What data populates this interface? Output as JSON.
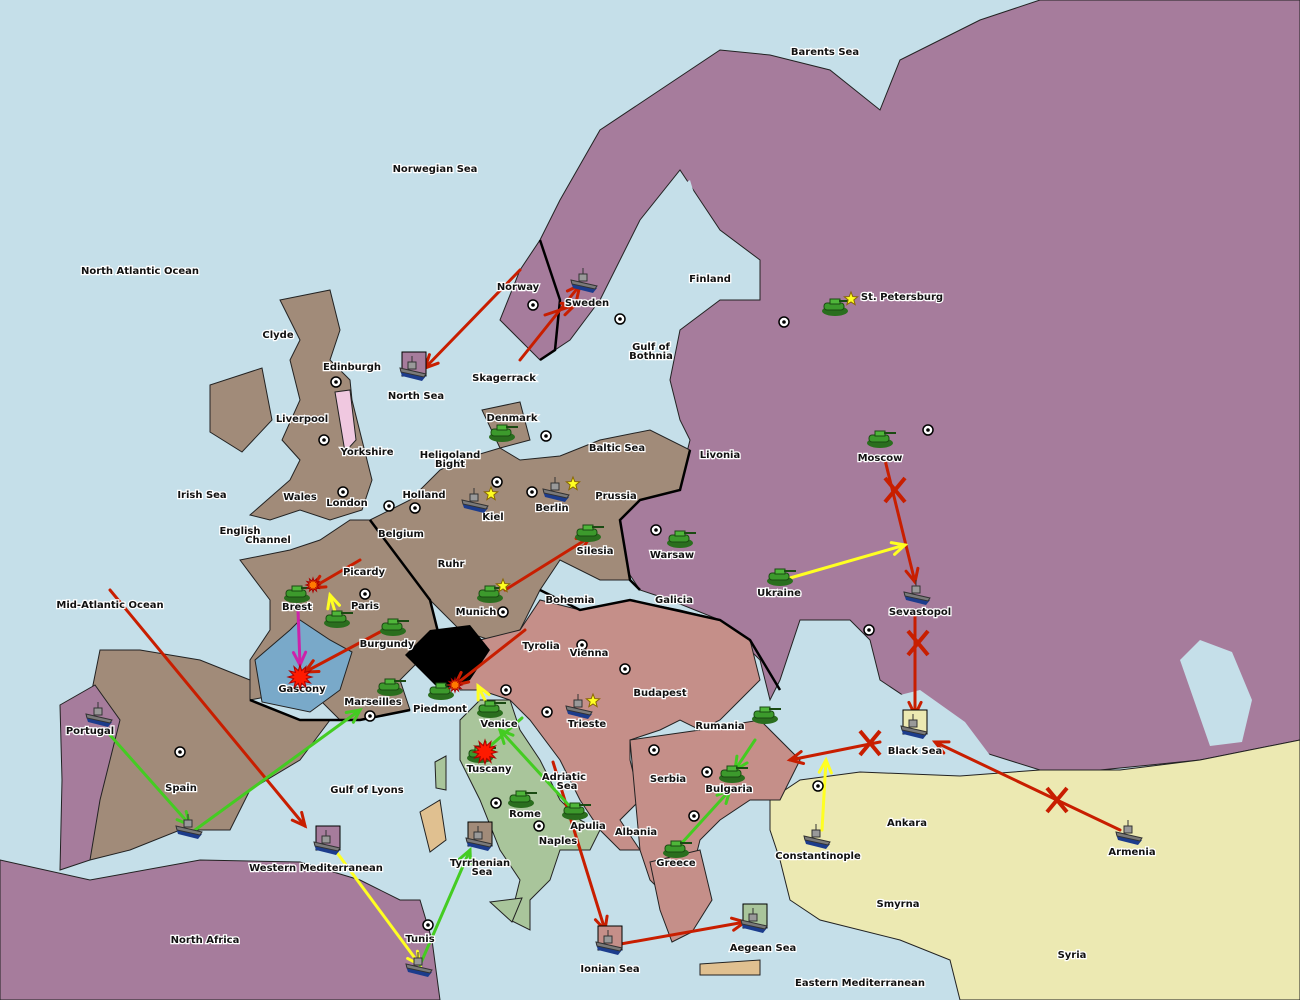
{
  "colors": {
    "sea": "#c5dfe9",
    "russia": "#a67c9c",
    "western": "#a18b79",
    "austria": "#c58f89",
    "italy": "#a9c59b",
    "turkey": "#ece9b2",
    "gascony": "#79a9c9",
    "yorkshire": "#f0c8e0",
    "sardinia": "#e0c090",
    "switzerland": "#000000",
    "army": "#3c9a2c",
    "fleet": "#7a7a7a"
  },
  "labels": {
    "barents_sea": "Barents Sea",
    "norwegian_sea": "Norwegian Sea",
    "north_atlantic_ocean": "North Atlantic Ocean",
    "clyde": "Clyde",
    "edinburgh": "Edinburgh",
    "liverpool": "Liverpool",
    "yorkshire": "Yorkshire",
    "wales": "Wales",
    "london": "London",
    "irish_sea": "Irish Sea",
    "english_channel": "English",
    "english_channel2": "Channel",
    "north_sea": "North Sea",
    "norway": "Norway",
    "sweden": "Sweden",
    "finland": "Finland",
    "st_petersburg": "St. Petersburg",
    "gulf_of_bothnia": "Gulf of",
    "gulf_of_bothnia2": "Bothnia",
    "skagerrack": "Skagerrack",
    "denmark": "Denmark",
    "baltic_sea": "Baltic Sea",
    "heligoland": "Heligoland",
    "heligoland2": "Bight",
    "holland": "Holland",
    "belgium": "Belgium",
    "kiel": "Kiel",
    "berlin": "Berlin",
    "prussia": "Prussia",
    "livonia": "Livonia",
    "moscow": "Moscow",
    "silesia": "Silesia",
    "warsaw": "Warsaw",
    "ruhr": "Ruhr",
    "picardy": "Picardy",
    "brest": "Brest",
    "paris": "Paris",
    "munich": "Munich",
    "bohemia": "Bohemia",
    "galicia": "Galicia",
    "ukraine": "Ukraine",
    "sevastopol": "Sevastopol",
    "mid_atlantic_ocean": "Mid-Atlantic Ocean",
    "burgundy": "Burgundy",
    "tyrolia": "Tyrolia",
    "vienna": "Vienna",
    "budapest": "Budapest",
    "gascony": "Gascony",
    "marseilles": "Marseilles",
    "piedmont": "Piedmont",
    "venice": "Venice",
    "trieste": "Trieste",
    "rumania": "Rumania",
    "black_sea": "Black Sea",
    "portugal": "Portugal",
    "spain": "Spain",
    "tuscany": "Tuscany",
    "adriatic_sea": "Adriatic",
    "adriatic_sea2": "Sea",
    "serbia": "Serbia",
    "bulgaria": "Bulgaria",
    "gulf_of_lyons": "Gulf of Lyons",
    "rome": "Rome",
    "apulia": "Apulia",
    "albania": "Albania",
    "naples": "Naples",
    "ankara": "Ankara",
    "armenia": "Armenia",
    "constantinople": "Constantinople",
    "greece": "Greece",
    "western_mediterranean": "Western Mediterranean",
    "tyrrhenian_sea": "Tyrrhenian",
    "tyrrhenian_sea2": "Sea",
    "smyrna": "Smyrna",
    "north_africa": "North Africa",
    "tunis": "Tunis",
    "aegean_sea": "Aegean Sea",
    "ionian_sea": "Ionian Sea",
    "syria": "Syria",
    "eastern_mediterranean": "Eastern Mediterranean"
  },
  "units": [
    {
      "type": "army",
      "province": "St. Petersburg"
    },
    {
      "type": "fleet",
      "province": "Sweden"
    },
    {
      "type": "army",
      "province": "Moscow"
    },
    {
      "type": "army",
      "province": "Denmark"
    },
    {
      "type": "fleet",
      "province": "Kiel"
    },
    {
      "type": "fleet",
      "province": "Berlin"
    },
    {
      "type": "army",
      "province": "Silesia"
    },
    {
      "type": "army",
      "province": "Warsaw"
    },
    {
      "type": "army",
      "province": "Munich"
    },
    {
      "type": "army",
      "province": "Ukraine"
    },
    {
      "type": "fleet",
      "province": "Sevastopol"
    },
    {
      "type": "army",
      "province": "Brest"
    },
    {
      "type": "army",
      "province": "Paris"
    },
    {
      "type": "army",
      "province": "Burgundy"
    },
    {
      "type": "army",
      "province": "Marseilles"
    },
    {
      "type": "army",
      "province": "Piedmont"
    },
    {
      "type": "army",
      "province": "Venice"
    },
    {
      "type": "army",
      "province": "Tuscany"
    },
    {
      "type": "army",
      "province": "Rome"
    },
    {
      "type": "army",
      "province": "Apulia"
    },
    {
      "type": "army",
      "province": "Rumania"
    },
    {
      "type": "army",
      "province": "Bulgaria"
    },
    {
      "type": "army",
      "province": "Greece"
    },
    {
      "type": "fleet",
      "province": "Constantinople"
    },
    {
      "type": "fleet",
      "province": "Armenia"
    },
    {
      "type": "fleet",
      "province": "Portugal"
    },
    {
      "type": "fleet",
      "province": "Spain"
    },
    {
      "type": "fleet",
      "province": "Tunis"
    },
    {
      "type": "fleet",
      "province": "Trieste"
    },
    {
      "type": "fleet",
      "province": "North Sea",
      "marker": "#a67c9c"
    },
    {
      "type": "fleet",
      "province": "Western Mediterranean",
      "marker": "#a67c9c"
    },
    {
      "type": "fleet",
      "province": "Tyrrhenian Sea",
      "marker": "#a18b79"
    },
    {
      "type": "fleet",
      "province": "Ionian Sea",
      "marker": "#c58f89"
    },
    {
      "type": "fleet",
      "province": "Aegean Sea",
      "marker": "#a9c59b"
    },
    {
      "type": "fleet",
      "province": "Black Sea",
      "marker": "#ece9b2"
    }
  ],
  "stars": [
    "St. Petersburg",
    "Kiel",
    "Berlin",
    "Munich",
    "Trieste"
  ],
  "battles": [
    {
      "province": "Brest",
      "color": "#ff7a00"
    },
    {
      "province": "Gascony",
      "color": "#ff1a00"
    },
    {
      "province": "Tuscany",
      "color": "#ff1a00"
    },
    {
      "province": "Piedmont",
      "color": "#ff7a00"
    }
  ],
  "order_colors": {
    "move": "#c81e00",
    "support": "#44cc22",
    "hold_support": "#ffff22",
    "convoy": "#cc22aa"
  }
}
